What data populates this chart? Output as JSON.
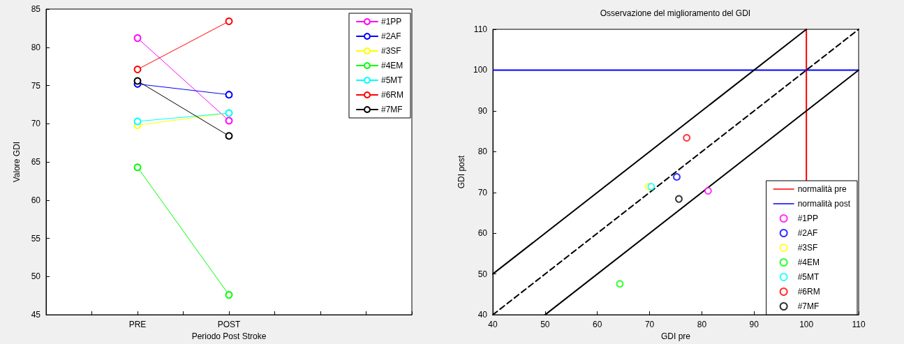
{
  "chart_data": [
    {
      "type": "line",
      "xlabel": "Periodo Post Stroke",
      "ylabel": "Valore GDI",
      "categories": [
        null,
        null,
        "PRE",
        null,
        "POST",
        null,
        null,
        null,
        null
      ],
      "ylim": [
        45,
        85
      ],
      "yticks": [
        45,
        50,
        55,
        60,
        65,
        70,
        75,
        80,
        85
      ],
      "grid": false,
      "legend": "top right",
      "marker": "circle",
      "line_style": "solid",
      "series": [
        {
          "name": "#1PP",
          "color": "#ff00ff",
          "x": [
            "PRE",
            "POST"
          ],
          "values": [
            81.2,
            70.4
          ]
        },
        {
          "name": "#2AF",
          "color": "#0000ff",
          "x": [
            "PRE",
            "POST"
          ],
          "values": [
            75.2,
            73.8
          ]
        },
        {
          "name": "#3SF",
          "color": "#ffff00",
          "x": [
            "PRE",
            "POST"
          ],
          "values": [
            69.8,
            71.4
          ]
        },
        {
          "name": "#4EM",
          "color": "#00ff00",
          "x": [
            "PRE",
            "POST"
          ],
          "values": [
            64.3,
            47.6
          ]
        },
        {
          "name": "#5MT",
          "color": "#00ffff",
          "x": [
            "PRE",
            "POST"
          ],
          "values": [
            70.3,
            71.4
          ]
        },
        {
          "name": "#6RM",
          "color": "#ff0000",
          "x": [
            "PRE",
            "POST"
          ],
          "values": [
            77.1,
            83.4
          ]
        },
        {
          "name": "#7MF",
          "color": "#000000",
          "x": [
            "PRE",
            "POST"
          ],
          "values": [
            75.6,
            68.4
          ]
        }
      ]
    },
    {
      "type": "scatter",
      "title": "Osservazione del miglioramento del GDI",
      "xlabel": "GDI pre",
      "ylabel": "GDI post",
      "xlim": [
        40,
        110
      ],
      "xticks": [
        40,
        50,
        60,
        70,
        80,
        90,
        100,
        110
      ],
      "ylim": [
        40,
        110
      ],
      "yticks": [
        40,
        50,
        60,
        70,
        80,
        90,
        100,
        110
      ],
      "grid": false,
      "legend": "bottom right",
      "marker": "circle",
      "ref_lines": [
        {
          "axis": "x",
          "value": 100,
          "label": "normalità pre",
          "color": "#ff0000"
        },
        {
          "axis": "y",
          "value": 100,
          "label": "normalità post",
          "color": "#0000ff"
        }
      ],
      "series": [
        {
          "type": "line",
          "color": "#000000",
          "line_style": "solid",
          "marker": "none",
          "x": [
            40,
            100
          ],
          "values": [
            50,
            110
          ]
        },
        {
          "type": "line",
          "color": "#000000",
          "line_style": "dashed",
          "marker": "none",
          "x": [
            40,
            110
          ],
          "values": [
            40,
            110
          ]
        },
        {
          "type": "line",
          "color": "#000000",
          "line_style": "solid",
          "marker": "none",
          "x": [
            50,
            110
          ],
          "values": [
            40,
            100
          ]
        },
        {
          "name": "#1PP",
          "color": "#ff00ff",
          "x": [
            81.2
          ],
          "values": [
            70.4
          ]
        },
        {
          "name": "#2AF",
          "color": "#0000ff",
          "x": [
            75.2
          ],
          "values": [
            73.8
          ]
        },
        {
          "name": "#3SF",
          "color": "#ffff00",
          "x": [
            69.8
          ],
          "values": [
            71.4
          ]
        },
        {
          "name": "#4EM",
          "color": "#00ff00",
          "x": [
            64.3
          ],
          "values": [
            47.6
          ]
        },
        {
          "name": "#5MT",
          "color": "#00ffff",
          "x": [
            70.3
          ],
          "values": [
            71.4
          ]
        },
        {
          "name": "#6RM",
          "color": "#ff0000",
          "x": [
            77.1
          ],
          "values": [
            83.4
          ]
        },
        {
          "name": "#7MF",
          "color": "#000000",
          "x": [
            75.6
          ],
          "values": [
            68.4
          ]
        }
      ]
    }
  ]
}
